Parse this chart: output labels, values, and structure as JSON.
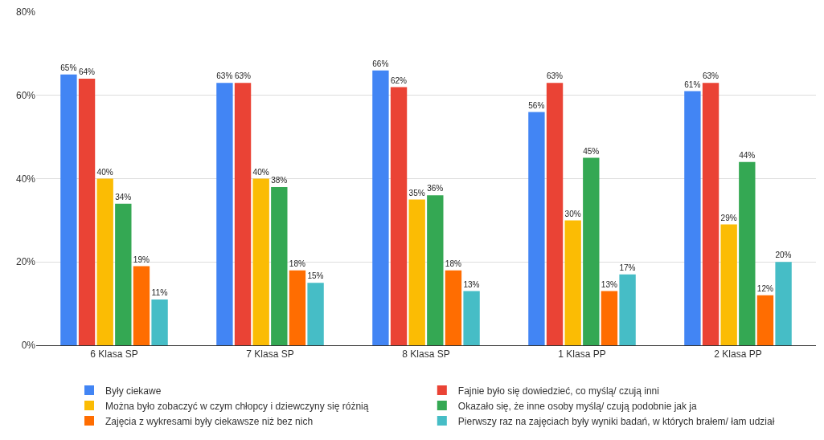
{
  "chart_data": {
    "type": "bar",
    "categories": [
      "6 Klasa SP",
      "7 Klasa SP",
      "8 Klasa SP",
      "1 Klasa PP",
      "2 Klasa PP"
    ],
    "ylim": [
      0,
      80
    ],
    "yticks": [
      {
        "value": 0,
        "label": "0%"
      },
      {
        "value": 20,
        "label": "20%"
      },
      {
        "value": 40,
        "label": "40%"
      },
      {
        "value": 60,
        "label": "60%"
      },
      {
        "value": 80,
        "label": "80%"
      }
    ],
    "grid": "y",
    "legend": "bottom",
    "series": [
      {
        "name": "Były ciekawe",
        "color": "#4285f4",
        "values": [
          65,
          63,
          66,
          56,
          61
        ],
        "value_labels": [
          "65%",
          "63%",
          "66%",
          "56%",
          "61%"
        ]
      },
      {
        "name": "Fajnie było się dowiedzieć, co myślą/ czują inni",
        "color": "#ea4335",
        "values": [
          64,
          63,
          62,
          63,
          63
        ],
        "value_labels": [
          "64%",
          "63%",
          "62%",
          "63%",
          "63%"
        ]
      },
      {
        "name": "Można było zobaczyć w czym chłopcy i dziewczyny się różnią",
        "color": "#fbbc04",
        "values": [
          40,
          40,
          35,
          30,
          29
        ],
        "value_labels": [
          "40%",
          "40%",
          "35%",
          "30%",
          "29%"
        ]
      },
      {
        "name": "Okazało się, że inne osoby myślą/ czują podobnie jak ja",
        "color": "#34a853",
        "values": [
          34,
          38,
          36,
          45,
          44
        ],
        "value_labels": [
          "34%",
          "38%",
          "36%",
          "45%",
          "44%"
        ]
      },
      {
        "name": "Zajęcia z wykresami były ciekawsze niż bez nich",
        "color": "#ff6d01",
        "values": [
          19,
          18,
          18,
          13,
          12
        ],
        "value_labels": [
          "19%",
          "18%",
          "18%",
          "13%",
          "12%"
        ]
      },
      {
        "name": "Pierwszy raz na zajęciach były wyniki badań, w których brałem/ łam udział",
        "color": "#46bdc6",
        "values": [
          11,
          15,
          13,
          17,
          20
        ],
        "value_labels": [
          "11%",
          "15%",
          "13%",
          "17%",
          "20%"
        ]
      }
    ]
  }
}
